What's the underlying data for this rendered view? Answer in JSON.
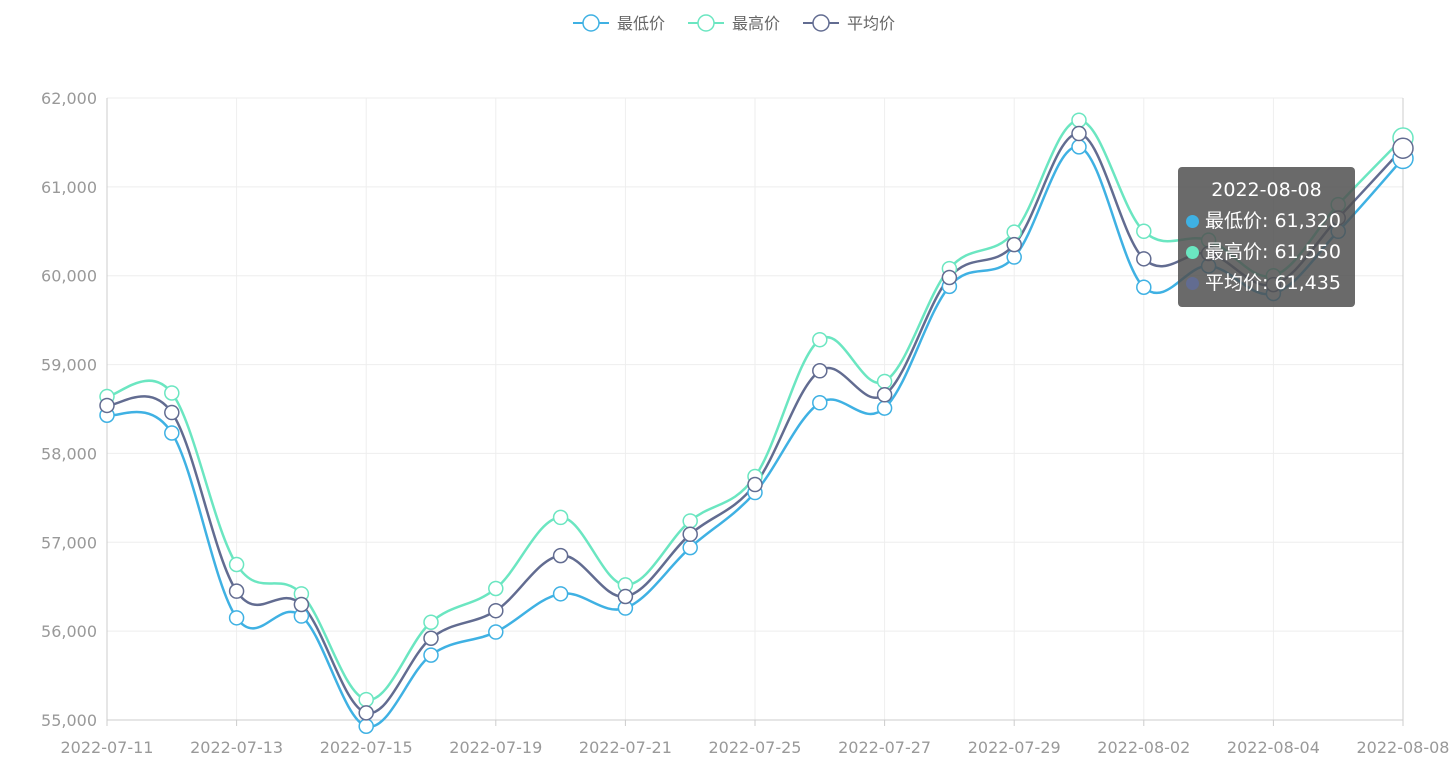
{
  "chart_data": {
    "type": "line",
    "smooth": true,
    "legend_position": "top-center",
    "grid": true,
    "ylim": [
      55000,
      62000
    ],
    "y_ticks": [
      "55,000",
      "56,000",
      "57,000",
      "58,000",
      "59,000",
      "60,000",
      "61,000",
      "62,000"
    ],
    "x": [
      "2022-07-11",
      "2022-07-12",
      "2022-07-13",
      "2022-07-14",
      "2022-07-15",
      "2022-07-18",
      "2022-07-19",
      "2022-07-20",
      "2022-07-21",
      "2022-07-22",
      "2022-07-25",
      "2022-07-26",
      "2022-07-27",
      "2022-07-28",
      "2022-07-29",
      "2022-08-01",
      "2022-08-02",
      "2022-08-03",
      "2022-08-04",
      "2022-08-05",
      "2022-08-08"
    ],
    "x_tick_labels": [
      "2022-07-11",
      "2022-07-13",
      "2022-07-15",
      "2022-07-19",
      "2022-07-21",
      "2022-07-25",
      "2022-07-27",
      "2022-07-29",
      "2022-08-02",
      "2022-08-04",
      "2022-08-08"
    ],
    "series": [
      {
        "name": "最低价",
        "color": "#3fb1e3",
        "values": [
          58430,
          58230,
          56150,
          56170,
          54930,
          55730,
          55990,
          56420,
          56260,
          56940,
          57560,
          58570,
          58510,
          59880,
          60210,
          61450,
          59870,
          60110,
          59800,
          60500,
          61320
        ]
      },
      {
        "name": "最高价",
        "color": "#6be6c1",
        "values": [
          58640,
          58680,
          56750,
          56420,
          55230,
          56100,
          56480,
          57280,
          56520,
          57240,
          57740,
          59280,
          58810,
          60080,
          60490,
          61750,
          60500,
          60400,
          60000,
          60800,
          61550
        ]
      },
      {
        "name": "平均价",
        "color": "#626c91",
        "values": [
          58540,
          58460,
          56450,
          56300,
          55080,
          55920,
          56230,
          56850,
          56390,
          57090,
          57650,
          58930,
          58660,
          59980,
          60350,
          61600,
          60190,
          60250,
          59900,
          60650,
          61435
        ]
      }
    ],
    "tooltip": {
      "date": "2022-08-08",
      "rows": [
        {
          "label": "最低价: 61,320",
          "color": "#3fb1e3"
        },
        {
          "label": "最高价: 61,550",
          "color": "#6be6c1"
        },
        {
          "label": "平均价: 61,435",
          "color": "#626c91"
        }
      ]
    }
  }
}
